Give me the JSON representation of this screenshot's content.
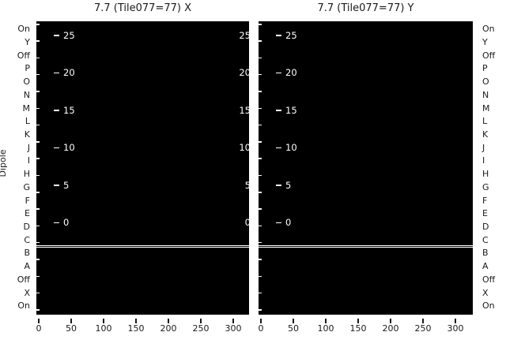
{
  "figure": {
    "y_axis_label": "Dipole",
    "row_labels": [
      "On",
      "Y",
      "Off",
      "P",
      "O",
      "N",
      "M",
      "L",
      "K",
      "J",
      "I",
      "H",
      "G",
      "F",
      "E",
      "D",
      "C",
      "B",
      "A",
      "Off",
      "X",
      "On"
    ],
    "panels": [
      {
        "id": "x",
        "title": "7.7 (Tile077=77) X",
        "inner_tick_labels": [
          "25",
          "20",
          "15",
          "10",
          "5",
          "0"
        ],
        "right_edge_labels": [
          "25",
          "20",
          "15",
          "10",
          "5",
          "0"
        ],
        "x_tick_labels": [
          "0",
          "50",
          "100",
          "150",
          "200",
          "250",
          "300"
        ]
      },
      {
        "id": "y",
        "title": "7.7 (Tile077=77) Y",
        "inner_tick_labels": [
          "25",
          "20",
          "15",
          "10",
          "5",
          "0"
        ],
        "right_edge_labels": [],
        "x_tick_labels": [
          "0",
          "50",
          "100",
          "150",
          "200",
          "250",
          "300"
        ]
      }
    ],
    "colors": {
      "figure_bg": "#ffffff",
      "panel_bg": "#000000",
      "inner_text": "#ffffff",
      "outer_text": "#1a1a1a",
      "separator_line": "#ffffff"
    }
  },
  "chart_data": [
    {
      "type": "heatmap",
      "title": "7.7 (Tile077=77) X",
      "ylabel": "Dipole",
      "y_categories": [
        "On",
        "Y",
        "Off",
        "P",
        "O",
        "N",
        "M",
        "L",
        "K",
        "J",
        "I",
        "H",
        "G",
        "F",
        "E",
        "D",
        "C",
        "B",
        "A",
        "Off",
        "X",
        "On"
      ],
      "x_ticks": [
        0,
        50,
        100,
        150,
        200,
        250,
        300
      ],
      "xlim": [
        -5,
        325
      ],
      "overlay_axis_ticks": [
        25,
        20,
        15,
        10,
        5,
        0
      ],
      "overlay_axis_label_side": "both",
      "uniform_cell_color": "#000000",
      "separator_line_between_rows": [
        "C",
        "B"
      ],
      "grid": false,
      "legend": false
    },
    {
      "type": "heatmap",
      "title": "7.7 (Tile077=77) Y",
      "ylabel": "Dipole",
      "y_categories": [
        "On",
        "Y",
        "Off",
        "P",
        "O",
        "N",
        "M",
        "L",
        "K",
        "J",
        "I",
        "H",
        "G",
        "F",
        "E",
        "D",
        "C",
        "B",
        "A",
        "Off",
        "X",
        "On"
      ],
      "x_ticks": [
        0,
        50,
        100,
        150,
        200,
        250,
        300
      ],
      "xlim": [
        -5,
        325
      ],
      "overlay_axis_ticks": [
        25,
        20,
        15,
        10,
        5,
        0
      ],
      "overlay_axis_label_side": "left",
      "uniform_cell_color": "#000000",
      "separator_line_between_rows": [
        "C",
        "B"
      ],
      "grid": false,
      "legend": false
    }
  ]
}
